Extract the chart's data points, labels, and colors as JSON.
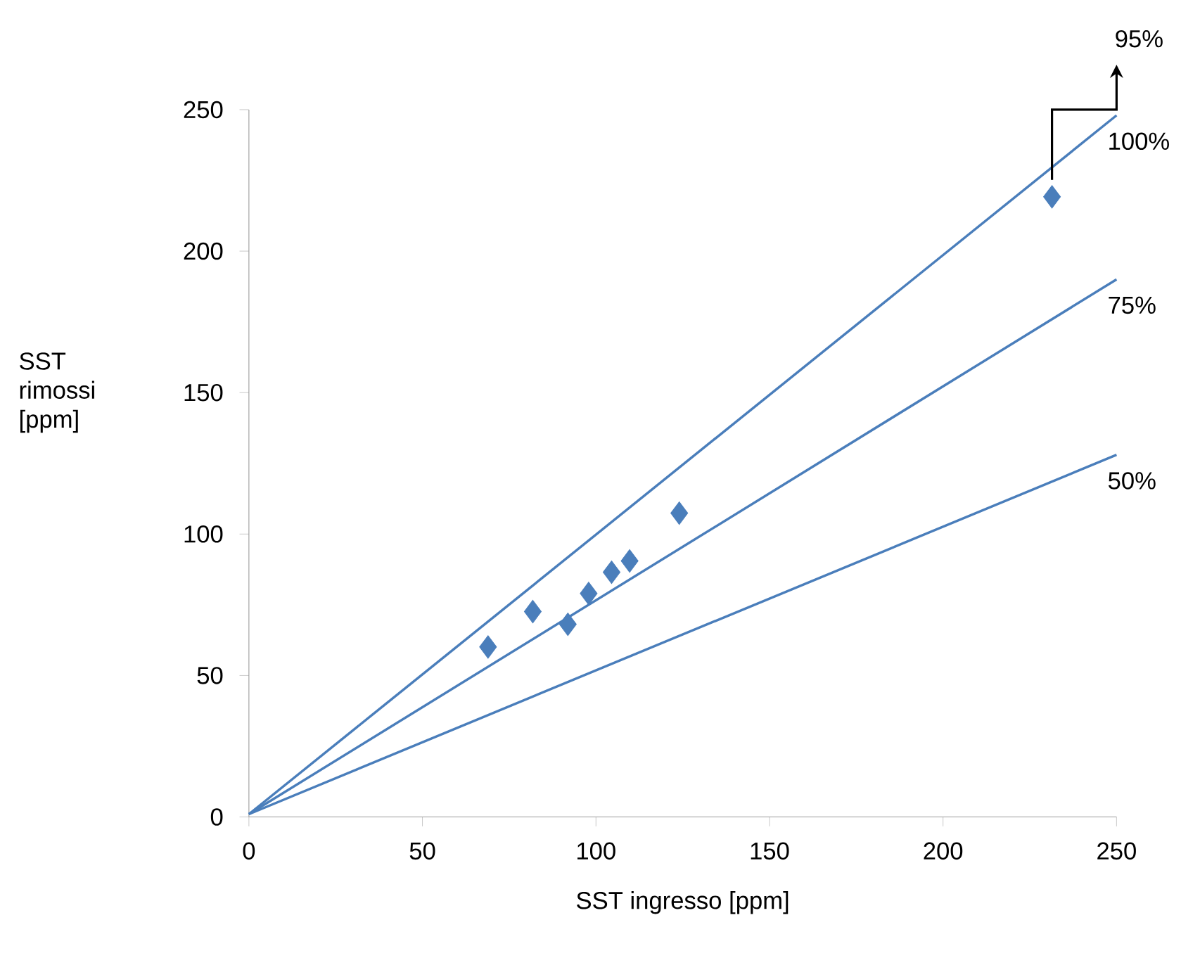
{
  "chart_data": {
    "type": "scatter",
    "xlabel": "SST ingresso [ppm]",
    "ylabel": "SST rimossi [ppm]",
    "xlim": [
      0,
      250
    ],
    "ylim": [
      0,
      250
    ],
    "xticks": [
      0,
      50,
      100,
      150,
      200,
      250
    ],
    "yticks": [
      0,
      50,
      100,
      150,
      200,
      250
    ],
    "grid": false,
    "legend": false,
    "marker": "diamond",
    "series": [
      {
        "color": "#4a7ebb",
        "x": [
          68.9,
          81.8,
          91.9,
          97.9,
          104.5,
          109.7,
          124.0,
          231.4
        ],
        "values": [
          60.1,
          72.6,
          68.1,
          79.0,
          86.5,
          90.5,
          107.4,
          219.2
        ]
      },
      {
        "type": "line",
        "name": "100%",
        "color": "#4a7ebb",
        "marker": "none",
        "x": [
          0,
          250
        ],
        "values": [
          1,
          248
        ]
      },
      {
        "type": "line",
        "name": "75%",
        "color": "#4a7ebb",
        "marker": "none",
        "x": [
          0,
          250
        ],
        "values": [
          1,
          190
        ]
      },
      {
        "type": "line",
        "name": "50%",
        "color": "#4a7ebb",
        "marker": "none",
        "x": [
          0,
          250
        ],
        "values": [
          1,
          128
        ]
      }
    ],
    "annotations": [
      "95%"
    ]
  }
}
